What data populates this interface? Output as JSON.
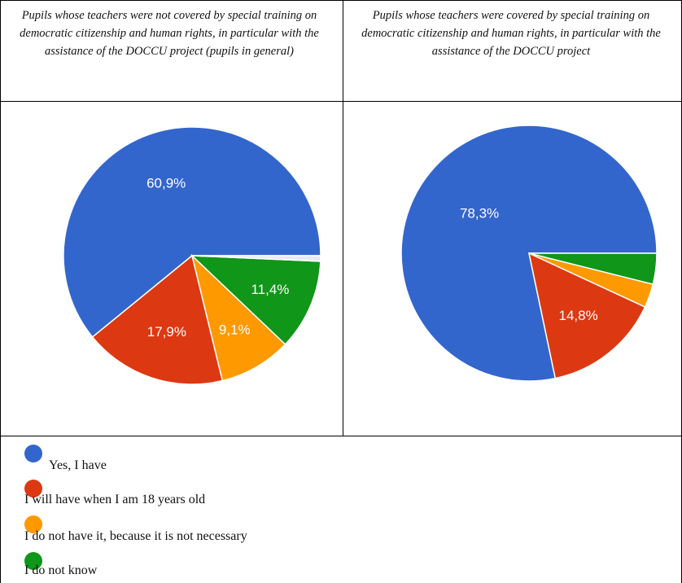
{
  "headers": {
    "left": "Pupils whose teachers were not covered by special training on democratic citizenship and human rights, in particular with the assistance of the DOCCU project (pupils in general)",
    "right": "Pupils whose teachers were covered by special training on democratic citizenship and human rights, in particular with the assistance of the DOCCU project"
  },
  "colors": {
    "yes": "#3366cc",
    "will_have": "#dc3912",
    "not_necessary": "#ff9900",
    "do_not_know": "#109618",
    "sliver": "#e9e9f5"
  },
  "chart_data": [
    {
      "type": "pie",
      "title": "",
      "slices": [
        {
          "label": "Yes, I have",
          "value": 60.9,
          "display": "60,9%",
          "color": "#3366cc"
        },
        {
          "label": "I will have when I am 18 years old",
          "value": 17.9,
          "display": "17,9%",
          "color": "#dc3912"
        },
        {
          "label": "I do not have it, because it is not necessary",
          "value": 9.1,
          "display": "9,1%",
          "color": "#ff9900"
        },
        {
          "label": "I do not know",
          "value": 11.4,
          "display": "11,4%",
          "color": "#109618"
        },
        {
          "label": "",
          "value": 0.7,
          "display": "",
          "color": "#e9e9f5"
        }
      ]
    },
    {
      "type": "pie",
      "title": "",
      "slices": [
        {
          "label": "Yes, I have",
          "value": 78.3,
          "display": "78,3%",
          "color": "#3366cc"
        },
        {
          "label": "I will have when I am 18 years old",
          "value": 14.8,
          "display": "14,8%",
          "color": "#dc3912"
        },
        {
          "label": "I do not have it, because it is not necessary",
          "value": 3.0,
          "display": "",
          "color": "#ff9900"
        },
        {
          "label": "I do not know",
          "value": 3.9,
          "display": "",
          "color": "#109618"
        }
      ]
    }
  ],
  "legend": [
    {
      "label": "Yes, I have",
      "color": "#3366cc"
    },
    {
      "label": "I will have when I am 18 years old",
      "color": "#dc3912"
    },
    {
      "label": "I do not have it, because it is not necessary",
      "color": "#ff9900"
    },
    {
      "label": "I do not know",
      "color": "#109618"
    }
  ]
}
